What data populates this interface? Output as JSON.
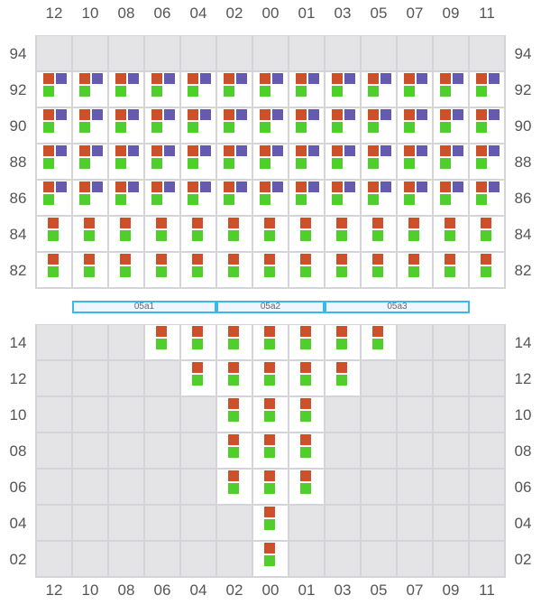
{
  "columns": [
    "12",
    "10",
    "08",
    "06",
    "04",
    "02",
    "00",
    "01",
    "03",
    "05",
    "07",
    "09",
    "11"
  ],
  "colors": {
    "orange": "#cc5129",
    "purple": "#645ab0",
    "green": "#4ecf2b",
    "empty": "#e4e4e7",
    "grid": "#d4d4d8",
    "bar_border": "#3bb7ee"
  },
  "top": {
    "rows": [
      {
        "label": "94",
        "cells": "-------------"
      },
      {
        "label": "92",
        "cells": "PPPPPPPPPPPPP"
      },
      {
        "label": "90",
        "cells": "PPPPPPPPPPPPP"
      },
      {
        "label": "88",
        "cells": "PPPPPPPPPPPPP"
      },
      {
        "label": "86",
        "cells": "PPPPPPPPPPPPP"
      },
      {
        "label": "84",
        "cells": "SSSSSSSSSSSSS"
      },
      {
        "label": "82",
        "cells": "SSSSSSSSSSSSS"
      }
    ]
  },
  "sections": [
    "05a1",
    "05a2",
    "05a3"
  ],
  "bottom": {
    "rows": [
      {
        "label": "14",
        "cells": "---SSSSSSS---"
      },
      {
        "label": "12",
        "cells": "----SSSSS----"
      },
      {
        "label": "10",
        "cells": "-----SSS-----"
      },
      {
        "label": "08",
        "cells": "-----SSS-----"
      },
      {
        "label": "06",
        "cells": "-----SSS-----"
      },
      {
        "label": "04",
        "cells": "------S------"
      },
      {
        "label": "02",
        "cells": "------S------"
      }
    ]
  }
}
